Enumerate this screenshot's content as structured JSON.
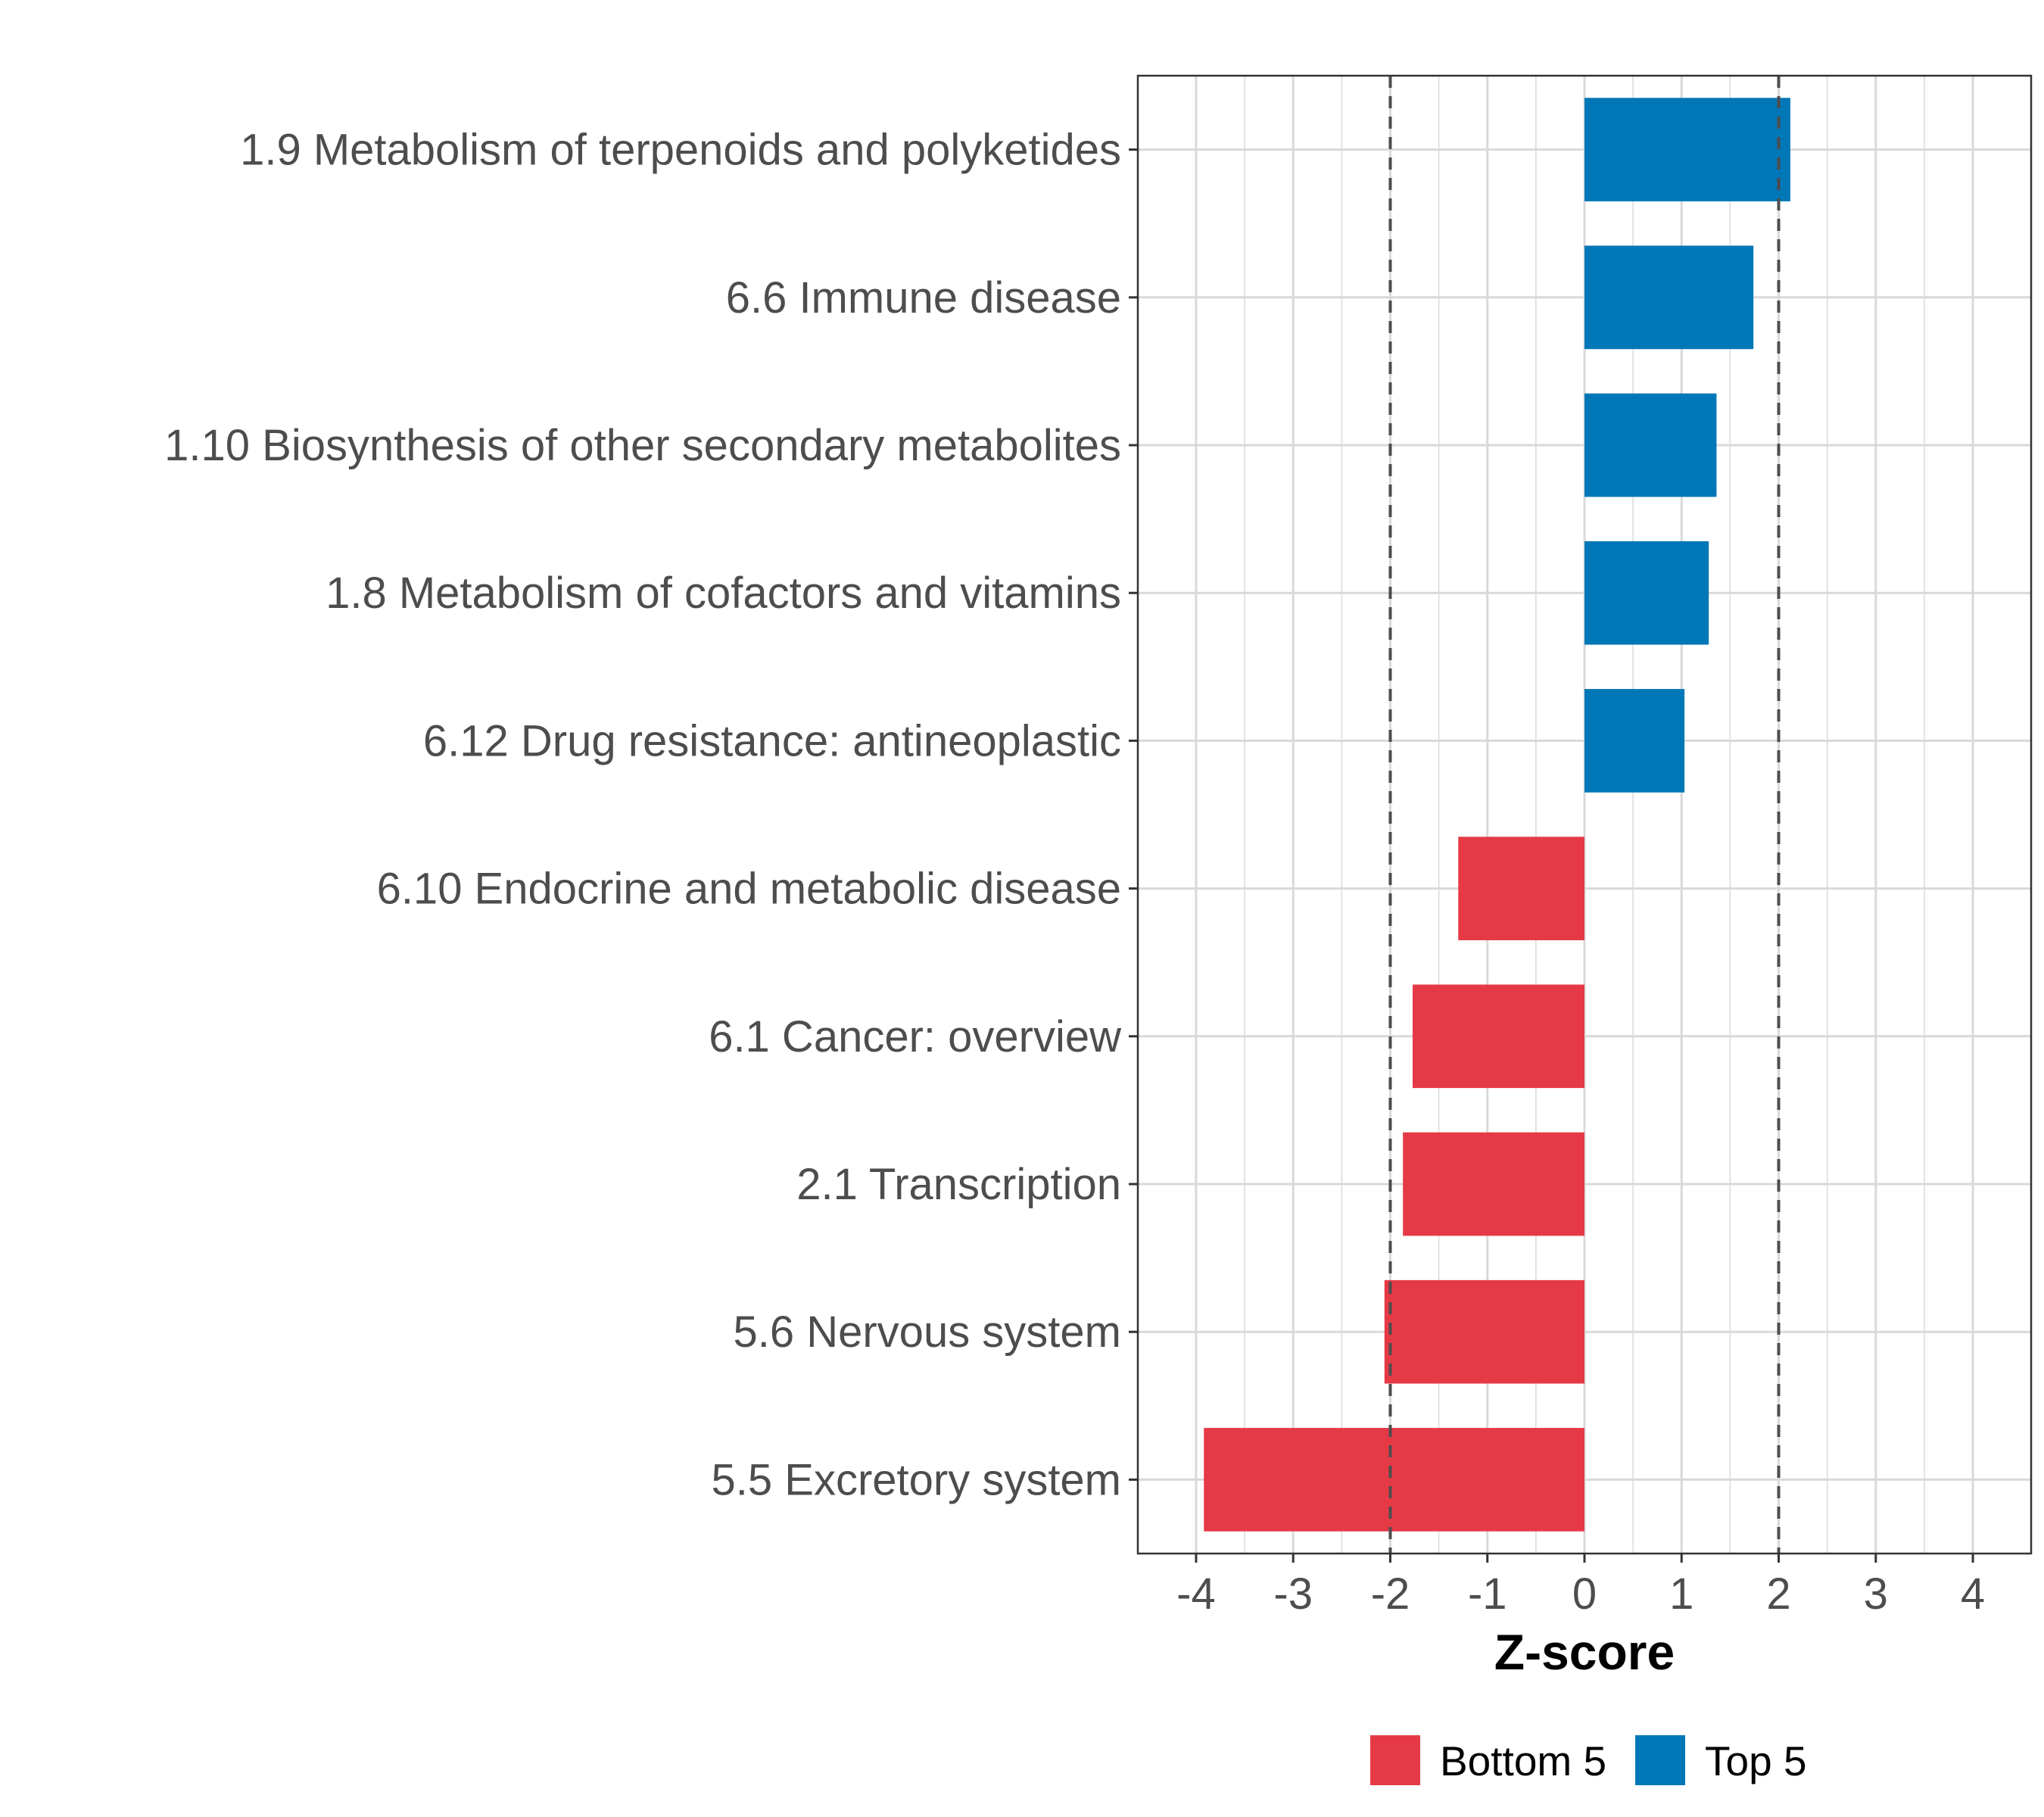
{
  "chart_data": {
    "type": "bar",
    "orientation": "horizontal",
    "title": "",
    "xlabel": "Z-score",
    "ylabel": "",
    "xlim": [
      -4.6,
      4.6
    ],
    "x_ticks": [
      -4,
      -3,
      -2,
      -1,
      0,
      1,
      2,
      3,
      4
    ],
    "x_tick_labels": [
      "-4",
      "-3",
      "-2",
      "-1",
      "0",
      "1",
      "2",
      "3",
      "4"
    ],
    "reference_lines": [
      -2,
      2
    ],
    "grid": true,
    "legend_position": "bottom",
    "categories": [
      "1.9 Metabolism of terpenoids and polyketides",
      "6.6 Immune disease",
      "1.10 Biosynthesis of other secondary metabolites",
      "1.8 Metabolism of cofactors and vitamins",
      "6.12 Drug resistance: antineoplastic",
      "6.10 Endocrine and metabolic disease",
      "6.1 Cancer: overview",
      "2.1 Transcription",
      "5.6 Nervous system",
      "5.5 Excretory system"
    ],
    "values": [
      2.12,
      1.74,
      1.36,
      1.28,
      1.03,
      -1.3,
      -1.77,
      -1.87,
      -2.06,
      -3.92
    ],
    "groups": [
      "Top 5",
      "Top 5",
      "Top 5",
      "Top 5",
      "Top 5",
      "Bottom 5",
      "Bottom 5",
      "Bottom 5",
      "Bottom 5",
      "Bottom 5"
    ],
    "legend": [
      {
        "name": "Bottom 5",
        "color": "#e63946"
      },
      {
        "name": "Top 5",
        "color": "#0077b6"
      }
    ]
  },
  "colors": {
    "top": "#0077b6",
    "bottom": "#e63946",
    "grid": "#d9d9d9",
    "reference_line": "#4d4d4d"
  }
}
